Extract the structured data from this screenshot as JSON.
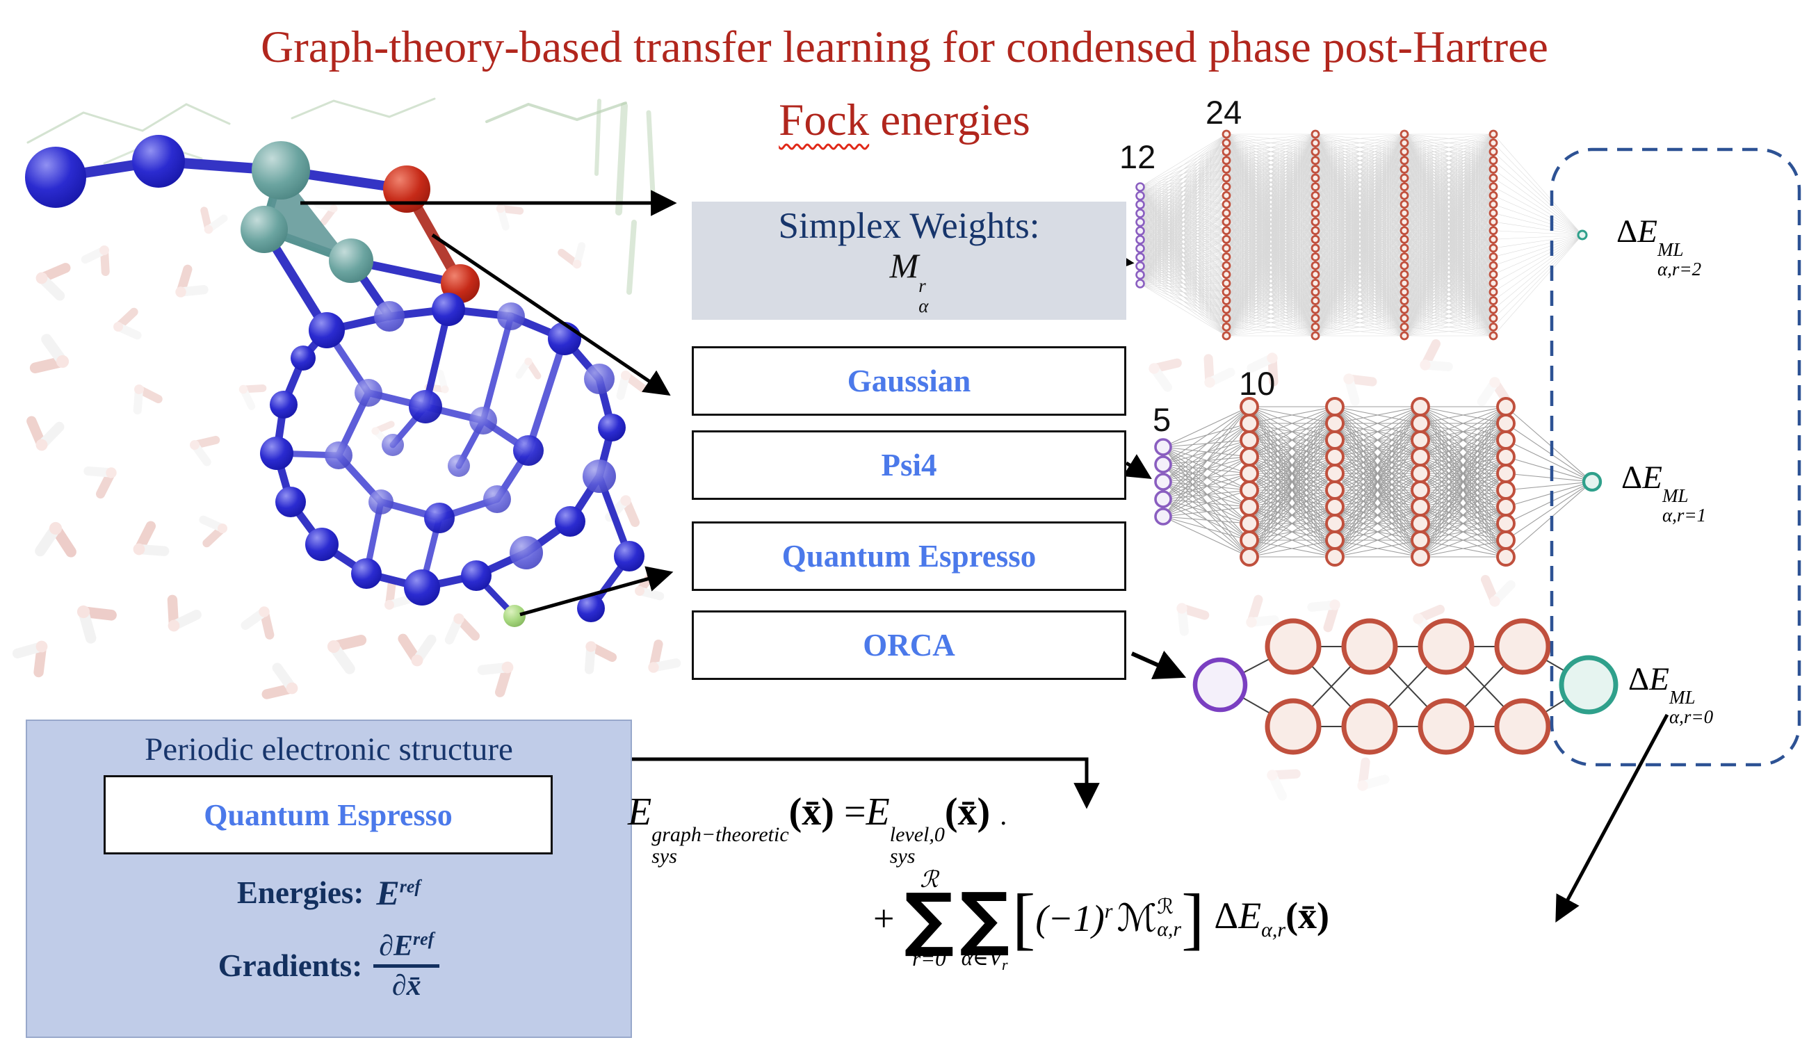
{
  "title": {
    "line1": "Graph-theory-based transfer learning for condensed phase post-Hartree",
    "line2_word": "Fock",
    "line2_rest": " energies"
  },
  "colors": {
    "title_red": "#b1261d",
    "navy": "#17356b",
    "code_blue": "#4b79ea",
    "simplex_bg": "#d8dce4",
    "periodic_bg": "#c0cce8",
    "nn_hidden_red": "#c0503d",
    "nn_input_purple": "#8a5ec0",
    "nn_output_teal": "#35a28c",
    "dashed_box_navy": "#2d5294"
  },
  "pipeline": {
    "simplex": {
      "label": "Simplex Weights:",
      "math": {
        "base": "M",
        "sup": "r",
        "sub": "α"
      }
    },
    "codes": [
      {
        "label": "Gaussian"
      },
      {
        "label": "Psi4"
      },
      {
        "label": "Quantum Espresso"
      },
      {
        "label": "ORCA"
      }
    ]
  },
  "networks": [
    {
      "input_label": "12",
      "hidden_label": "24",
      "input_nodes": 12,
      "hidden_nodes": 24,
      "hidden_layers": 4,
      "output": {
        "delta": "Δ",
        "base": "E",
        "sup": "ML",
        "sub": "α,r=2"
      }
    },
    {
      "input_label": "5",
      "hidden_label": "10",
      "input_nodes": 5,
      "hidden_nodes": 10,
      "hidden_layers": 4,
      "output": {
        "delta": "Δ",
        "base": "E",
        "sup": "ML",
        "sub": "α,r=1"
      }
    },
    {
      "input_nodes": 1,
      "hidden_nodes": 2,
      "hidden_layers": 4,
      "output": {
        "delta": "Δ",
        "base": "E",
        "sup": "ML",
        "sub": "α,r=0"
      }
    }
  ],
  "periodic": {
    "title": "Periodic electronic structure",
    "code": "Quantum Espresso",
    "energies": {
      "label": "Energies:",
      "base": "E",
      "sup": "ref"
    },
    "gradients": {
      "label": "Gradients:",
      "num": "∂E",
      "num_sup": "ref",
      "den": "∂x̄"
    }
  },
  "equation": {
    "lhs": {
      "base": "E",
      "sup": "graph−theoretic",
      "sub": "sys",
      "arg": "(x̄)"
    },
    "equals": "=",
    "rhs": {
      "base": "E",
      "sup": "level,0",
      "sub": "sys",
      "arg": "(x̄)"
    },
    "dot": ".",
    "plus": "+",
    "sum1": {
      "sigma": "∑",
      "top": "ℛ",
      "bottom": "r=0"
    },
    "sum2": {
      "sigma": "∑",
      "bottom_base": "α∈V",
      "bottom_sub": "r"
    },
    "term": {
      "open": "[",
      "body": "(−1)",
      "body_sup": "r",
      "m": "ℳ",
      "m_sup": "ℛ",
      "m_sub": "α,r",
      "close": "]"
    },
    "delta_term": {
      "delta": "Δ",
      "base": "E",
      "sub": "α,r",
      "arg": "(x̄)"
    }
  }
}
